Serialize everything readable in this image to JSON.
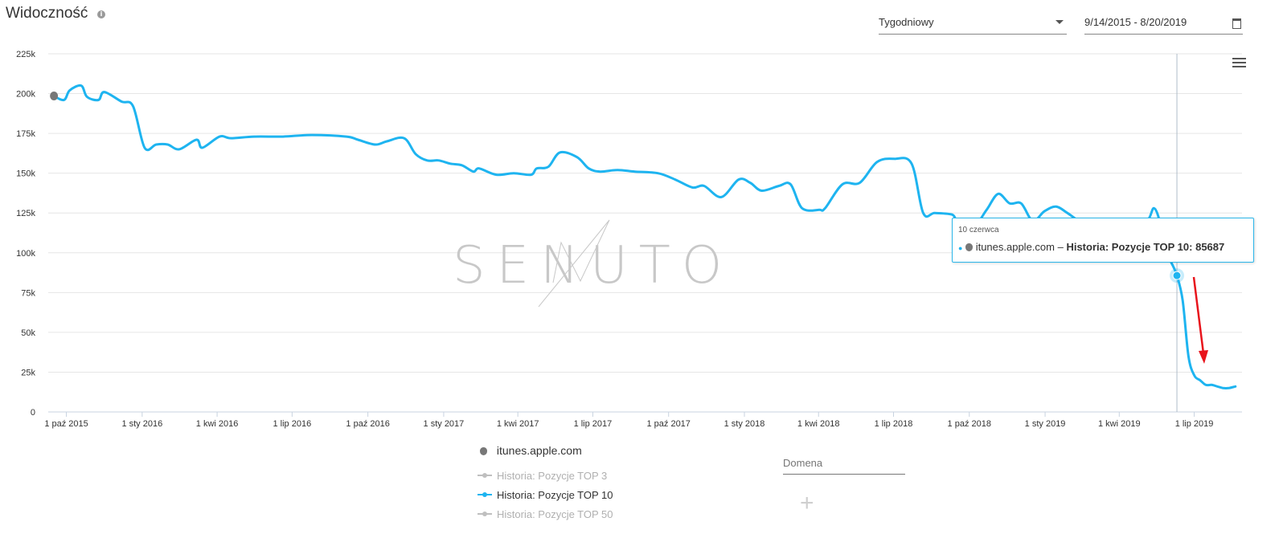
{
  "header": {
    "title": "Widoczność",
    "info_icon": "info-icon"
  },
  "controls": {
    "period": "Tygodniowy",
    "date_range": "9/14/2015 - 8/20/2019",
    "menu_icon": "hamburger-menu-icon",
    "calendar_icon": "calendar-icon"
  },
  "watermark": "SENUTO",
  "tooltip": {
    "date": "10 czerwca",
    "domain": "itunes.apple.com",
    "series": "Historia: Pozycje TOP 10",
    "value": "85687"
  },
  "legend": {
    "domain": "itunes.apple.com",
    "items": [
      {
        "label": "Historia: Pozycje TOP 3",
        "color": "#bfbfbf",
        "active": false
      },
      {
        "label": "Historia: Pozycje TOP 10",
        "color": "#1eb4f0",
        "active": true
      },
      {
        "label": "Historia: Pozycje TOP 50",
        "color": "#bfbfbf",
        "active": false
      }
    ]
  },
  "domain_input": {
    "placeholder": "Domena"
  },
  "add_button": "+",
  "chart_data": {
    "type": "line",
    "x_unit": "date",
    "x_ticks": [
      "1 paź 2015",
      "1 sty 2016",
      "1 kwi 2016",
      "1 lip 2016",
      "1 paź 2016",
      "1 sty 2017",
      "1 kwi 2017",
      "1 lip 2017",
      "1 paź 2017",
      "1 sty 2018",
      "1 kwi 2018",
      "1 lip 2018",
      "1 paź 2018",
      "1 sty 2019",
      "1 kwi 2019",
      "1 lip 2019"
    ],
    "y_ticks": [
      "0",
      "25k",
      "50k",
      "75k",
      "100k",
      "125k",
      "150k",
      "175k",
      "200k",
      "225k"
    ],
    "ylim": [
      0,
      225000
    ],
    "xlim": [
      "2015-09-14",
      "2019-08-20"
    ],
    "grid": true,
    "series": [
      {
        "name": "Historia: Pozycje TOP 10",
        "color": "#1eb4f0",
        "points": [
          [
            "2015-09-14",
            199000
          ],
          [
            "2015-09-28",
            196000
          ],
          [
            "2015-10-05",
            202000
          ],
          [
            "2015-10-19",
            205000
          ],
          [
            "2015-10-26",
            198000
          ],
          [
            "2015-11-09",
            196000
          ],
          [
            "2015-11-16",
            201000
          ],
          [
            "2015-12-07",
            195000
          ],
          [
            "2015-12-21",
            192000
          ],
          [
            "2016-01-04",
            166000
          ],
          [
            "2016-01-18",
            168000
          ],
          [
            "2016-02-01",
            168000
          ],
          [
            "2016-02-15",
            165000
          ],
          [
            "2016-03-07",
            171000
          ],
          [
            "2016-03-14",
            166000
          ],
          [
            "2016-04-04",
            173000
          ],
          [
            "2016-04-18",
            172000
          ],
          [
            "2016-05-16",
            173000
          ],
          [
            "2016-06-20",
            173000
          ],
          [
            "2016-07-25",
            174000
          ],
          [
            "2016-09-05",
            173000
          ],
          [
            "2016-09-19",
            171000
          ],
          [
            "2016-10-10",
            168000
          ],
          [
            "2016-10-24",
            170000
          ],
          [
            "2016-11-14",
            172000
          ],
          [
            "2016-11-28",
            162000
          ],
          [
            "2016-12-12",
            158000
          ],
          [
            "2016-12-26",
            158000
          ],
          [
            "2017-01-09",
            156000
          ],
          [
            "2017-01-23",
            155000
          ],
          [
            "2017-02-06",
            151000
          ],
          [
            "2017-02-13",
            153000
          ],
          [
            "2017-03-06",
            149000
          ],
          [
            "2017-03-27",
            150000
          ],
          [
            "2017-04-17",
            149000
          ],
          [
            "2017-04-24",
            153000
          ],
          [
            "2017-05-08",
            154000
          ],
          [
            "2017-05-22",
            163000
          ],
          [
            "2017-06-12",
            160000
          ],
          [
            "2017-06-26",
            153000
          ],
          [
            "2017-07-10",
            151000
          ],
          [
            "2017-07-31",
            152000
          ],
          [
            "2017-08-21",
            151000
          ],
          [
            "2017-09-18",
            150000
          ],
          [
            "2017-10-09",
            146000
          ],
          [
            "2017-10-30",
            141000
          ],
          [
            "2017-11-13",
            142000
          ],
          [
            "2017-12-04",
            135000
          ],
          [
            "2017-12-25",
            146000
          ],
          [
            "2018-01-08",
            144000
          ],
          [
            "2018-01-22",
            139000
          ],
          [
            "2018-02-12",
            142000
          ],
          [
            "2018-02-26",
            143000
          ],
          [
            "2018-03-12",
            128000
          ],
          [
            "2018-04-02",
            127000
          ],
          [
            "2018-04-09",
            128000
          ],
          [
            "2018-04-30",
            143000
          ],
          [
            "2018-05-21",
            144000
          ],
          [
            "2018-06-11",
            157000
          ],
          [
            "2018-07-02",
            159000
          ],
          [
            "2018-07-23",
            156000
          ],
          [
            "2018-08-06",
            125000
          ],
          [
            "2018-08-20",
            125000
          ],
          [
            "2018-09-10",
            124000
          ],
          [
            "2018-09-17",
            120000
          ],
          [
            "2018-10-08",
            118000
          ],
          [
            "2018-10-22",
            127000
          ],
          [
            "2018-11-05",
            137000
          ],
          [
            "2018-11-19",
            131000
          ],
          [
            "2018-12-03",
            131000
          ],
          [
            "2018-12-17",
            120000
          ],
          [
            "2018-12-31",
            126000
          ],
          [
            "2019-01-14",
            129000
          ],
          [
            "2019-01-28",
            125000
          ],
          [
            "2019-02-11",
            120000
          ],
          [
            "2019-02-25",
            117000
          ],
          [
            "2019-03-11",
            120000
          ],
          [
            "2019-03-25",
            118000
          ],
          [
            "2019-04-08",
            121000
          ],
          [
            "2019-04-22",
            120000
          ],
          [
            "2019-05-06",
            121000
          ],
          [
            "2019-05-13",
            128000
          ],
          [
            "2019-05-20",
            120000
          ],
          [
            "2019-05-27",
            101000
          ],
          [
            "2019-06-03",
            94000
          ],
          [
            "2019-06-10",
            85687
          ],
          [
            "2019-06-17",
            70000
          ],
          [
            "2019-06-24",
            35000
          ],
          [
            "2019-07-01",
            23000
          ],
          [
            "2019-07-08",
            20000
          ],
          [
            "2019-07-15",
            17000
          ],
          [
            "2019-07-22",
            17000
          ],
          [
            "2019-07-29",
            16000
          ],
          [
            "2019-08-05",
            15000
          ],
          [
            "2019-08-12",
            15000
          ],
          [
            "2019-08-20",
            16000
          ]
        ]
      }
    ],
    "highlight": {
      "x": "2019-06-10",
      "y": 85687
    }
  }
}
